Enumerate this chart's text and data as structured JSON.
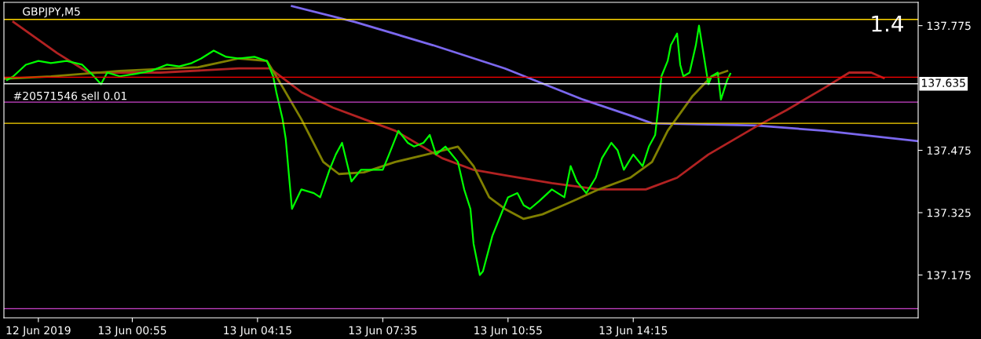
{
  "chart_data": {
    "type": "line",
    "title": "GBPJPY,M5",
    "annotations": [
      "1.4"
    ],
    "xlim": [
      "2019-06-12T21:30",
      "2019-06-13T21:50"
    ],
    "ylim": [
      137.072,
      137.831
    ],
    "xticks": [
      {
        "value": "2019-06-12T22:25",
        "label": "12 Jun 2019"
      },
      {
        "value": "2019-06-13T00:55",
        "label": "13 Jun 00:55"
      },
      {
        "value": "2019-06-13T04:15",
        "label": "13 Jun 04:15"
      },
      {
        "value": "2019-06-13T07:35",
        "label": "13 Jun 07:35"
      },
      {
        "value": "2019-06-13T10:55",
        "label": "13 Jun 10:55"
      },
      {
        "value": "2019-06-13T14:15",
        "label": "13 Jun 14:15"
      }
    ],
    "yticks": [
      137.775,
      137.475,
      137.325,
      137.175
    ],
    "grid": false,
    "legend": false,
    "series": [
      {
        "color": "#7b68ee",
        "x": [
          "2019-06-13T05:10",
          "2019-06-13T06:50",
          "2019-06-13T08:55",
          "2019-06-13T10:50",
          "2019-06-13T12:55",
          "2019-06-13T14:10",
          "2019-06-13T14:45",
          "2019-06-13T17:30",
          "2019-06-13T19:20",
          "2019-06-13T21:50"
        ],
        "values": [
          137.822,
          137.784,
          137.728,
          137.672,
          137.597,
          137.559,
          137.54,
          137.535,
          137.522,
          137.497
        ]
      },
      {
        "color": "#b22222",
        "x": [
          "2019-06-12T21:45",
          "2019-06-12T22:55",
          "2019-06-12T23:45",
          "2019-06-13T01:40",
          "2019-06-13T03:45",
          "2019-06-13T04:35",
          "2019-06-13T05:25",
          "2019-06-13T06:15",
          "2019-06-13T07:05",
          "2019-06-13T07:55",
          "2019-06-13T09:10",
          "2019-06-13T10:00",
          "2019-06-13T10:50",
          "2019-06-13T12:05",
          "2019-06-13T13:20",
          "2019-06-13T14:35",
          "2019-06-13T15:25",
          "2019-06-13T16:15",
          "2019-06-13T17:30",
          "2019-06-13T18:20",
          "2019-06-13T19:20",
          "2019-06-13T20:00",
          "2019-06-13T20:35",
          "2019-06-13T20:55"
        ],
        "values": [
          137.784,
          137.709,
          137.662,
          137.662,
          137.672,
          137.672,
          137.615,
          137.578,
          137.55,
          137.522,
          137.456,
          137.428,
          137.415,
          137.396,
          137.381,
          137.381,
          137.409,
          137.465,
          137.531,
          137.572,
          137.625,
          137.662,
          137.662,
          137.649
        ]
      },
      {
        "color": "#808000",
        "x": [
          "2019-06-12T21:30",
          "2019-06-12T22:45",
          "2019-06-13T00:35",
          "2019-06-13T02:40",
          "2019-06-13T03:45",
          "2019-06-13T04:30",
          "2019-06-13T04:45",
          "2019-06-13T05:25",
          "2019-06-13T06:00",
          "2019-06-13T06:25",
          "2019-06-13T07:05",
          "2019-06-13T07:55",
          "2019-06-13T08:45",
          "2019-06-13T09:35",
          "2019-06-13T10:00",
          "2019-06-13T10:25",
          "2019-06-13T10:50",
          "2019-06-13T11:20",
          "2019-06-13T11:50",
          "2019-06-13T12:30",
          "2019-06-13T13:20",
          "2019-06-13T14:10",
          "2019-06-13T14:45",
          "2019-06-13T15:10",
          "2019-06-13T15:50",
          "2019-06-13T16:20",
          "2019-06-13T16:45"
        ],
        "values": [
          137.647,
          137.653,
          137.666,
          137.675,
          137.696,
          137.69,
          137.653,
          137.55,
          137.447,
          137.418,
          137.422,
          137.447,
          137.465,
          137.484,
          137.437,
          137.362,
          137.334,
          137.31,
          137.321,
          137.347,
          137.381,
          137.409,
          137.447,
          137.522,
          137.606,
          137.653,
          137.666
        ]
      },
      {
        "color": "#00ff00",
        "x": [
          "2019-06-12T21:35",
          "2019-06-12T21:45",
          "2019-06-12T22:05",
          "2019-06-12T22:25",
          "2019-06-12T22:45",
          "2019-06-12T23:10",
          "2019-06-12T23:35",
          "2019-06-12T23:50",
          "2019-06-13T00:05",
          "2019-06-13T00:15",
          "2019-06-13T00:35",
          "2019-06-13T01:00",
          "2019-06-13T01:25",
          "2019-06-13T01:50",
          "2019-06-13T02:10",
          "2019-06-13T02:30",
          "2019-06-13T02:45",
          "2019-06-13T03:05",
          "2019-06-13T03:25",
          "2019-06-13T03:45",
          "2019-06-13T04:10",
          "2019-06-13T04:30",
          "2019-06-13T04:40",
          "2019-06-13T04:45",
          "2019-06-13T04:55",
          "2019-06-13T05:00",
          "2019-06-13T05:05",
          "2019-06-13T05:10",
          "2019-06-13T05:25",
          "2019-06-13T05:45",
          "2019-06-13T05:55",
          "2019-06-13T06:10",
          "2019-06-13T06:20",
          "2019-06-13T06:30",
          "2019-06-13T06:45",
          "2019-06-13T07:00",
          "2019-06-13T07:15",
          "2019-06-13T07:35",
          "2019-06-13T07:45",
          "2019-06-13T08:00",
          "2019-06-13T08:15",
          "2019-06-13T08:25",
          "2019-06-13T08:40",
          "2019-06-13T08:50",
          "2019-06-13T09:00",
          "2019-06-13T09:15",
          "2019-06-13T09:35",
          "2019-06-13T09:45",
          "2019-06-13T09:55",
          "2019-06-13T10:00",
          "2019-06-13T10:10",
          "2019-06-13T10:15",
          "2019-06-13T10:30",
          "2019-06-13T10:45",
          "2019-06-13T10:55",
          "2019-06-13T11:10",
          "2019-06-13T11:20",
          "2019-06-13T11:30",
          "2019-06-13T11:45",
          "2019-06-13T12:05",
          "2019-06-13T12:25",
          "2019-06-13T12:35",
          "2019-06-13T12:45",
          "2019-06-13T13:00",
          "2019-06-13T13:15",
          "2019-06-13T13:25",
          "2019-06-13T13:40",
          "2019-06-13T13:50",
          "2019-06-13T14:00",
          "2019-06-13T14:15",
          "2019-06-13T14:30",
          "2019-06-13T14:40",
          "2019-06-13T14:50",
          "2019-06-13T14:55",
          "2019-06-13T15:00",
          "2019-06-13T15:10",
          "2019-06-13T15:15",
          "2019-06-13T15:25",
          "2019-06-13T15:30",
          "2019-06-13T15:35",
          "2019-06-13T15:45",
          "2019-06-13T15:55",
          "2019-06-13T16:00",
          "2019-06-13T16:10",
          "2019-06-13T16:15",
          "2019-06-13T16:20",
          "2019-06-13T16:30",
          "2019-06-13T16:35",
          "2019-06-13T16:45",
          "2019-06-13T16:50"
        ],
        "values": [
          137.644,
          137.653,
          137.681,
          137.69,
          137.685,
          137.69,
          137.681,
          137.659,
          137.634,
          137.662,
          137.653,
          137.659,
          137.666,
          137.681,
          137.677,
          137.685,
          137.696,
          137.715,
          137.7,
          137.696,
          137.7,
          137.69,
          137.653,
          137.615,
          137.55,
          137.503,
          137.418,
          137.334,
          137.381,
          137.372,
          137.362,
          137.428,
          137.465,
          137.493,
          137.4,
          137.428,
          137.428,
          137.428,
          137.465,
          137.522,
          137.493,
          137.484,
          137.493,
          137.512,
          137.465,
          137.484,
          137.447,
          137.381,
          137.334,
          137.25,
          137.175,
          137.184,
          137.269,
          137.325,
          137.362,
          137.372,
          137.343,
          137.334,
          137.353,
          137.381,
          137.362,
          137.437,
          137.4,
          137.372,
          137.409,
          137.456,
          137.493,
          137.475,
          137.428,
          137.465,
          137.437,
          137.484,
          137.512,
          137.578,
          137.653,
          137.69,
          137.728,
          137.756,
          137.681,
          137.653,
          137.662,
          137.728,
          137.775,
          137.681,
          137.634,
          137.653,
          137.662,
          137.597,
          137.644,
          137.659
        ]
      }
    ],
    "ref_lines": [
      {
        "axis": "y",
        "value": 137.79,
        "color": "#ffd700",
        "line_style": "solid"
      },
      {
        "axis": "y",
        "value": 137.651,
        "color": "#ff0000",
        "line_style": "solid"
      },
      {
        "axis": "y",
        "value": 137.635,
        "label": "137.635",
        "color": "#e6e6e6",
        "line_style": "solid"
      },
      {
        "axis": "y",
        "value": 137.591,
        "label": "#20571546 sell 0.01",
        "color": "#cc44cc",
        "line_style": "solid"
      },
      {
        "axis": "y",
        "value": 137.54,
        "color": "#ffd700",
        "line_style": "solid"
      },
      {
        "axis": "y",
        "value": 137.094,
        "color": "#cc44cc",
        "line_style": "solid"
      }
    ]
  }
}
